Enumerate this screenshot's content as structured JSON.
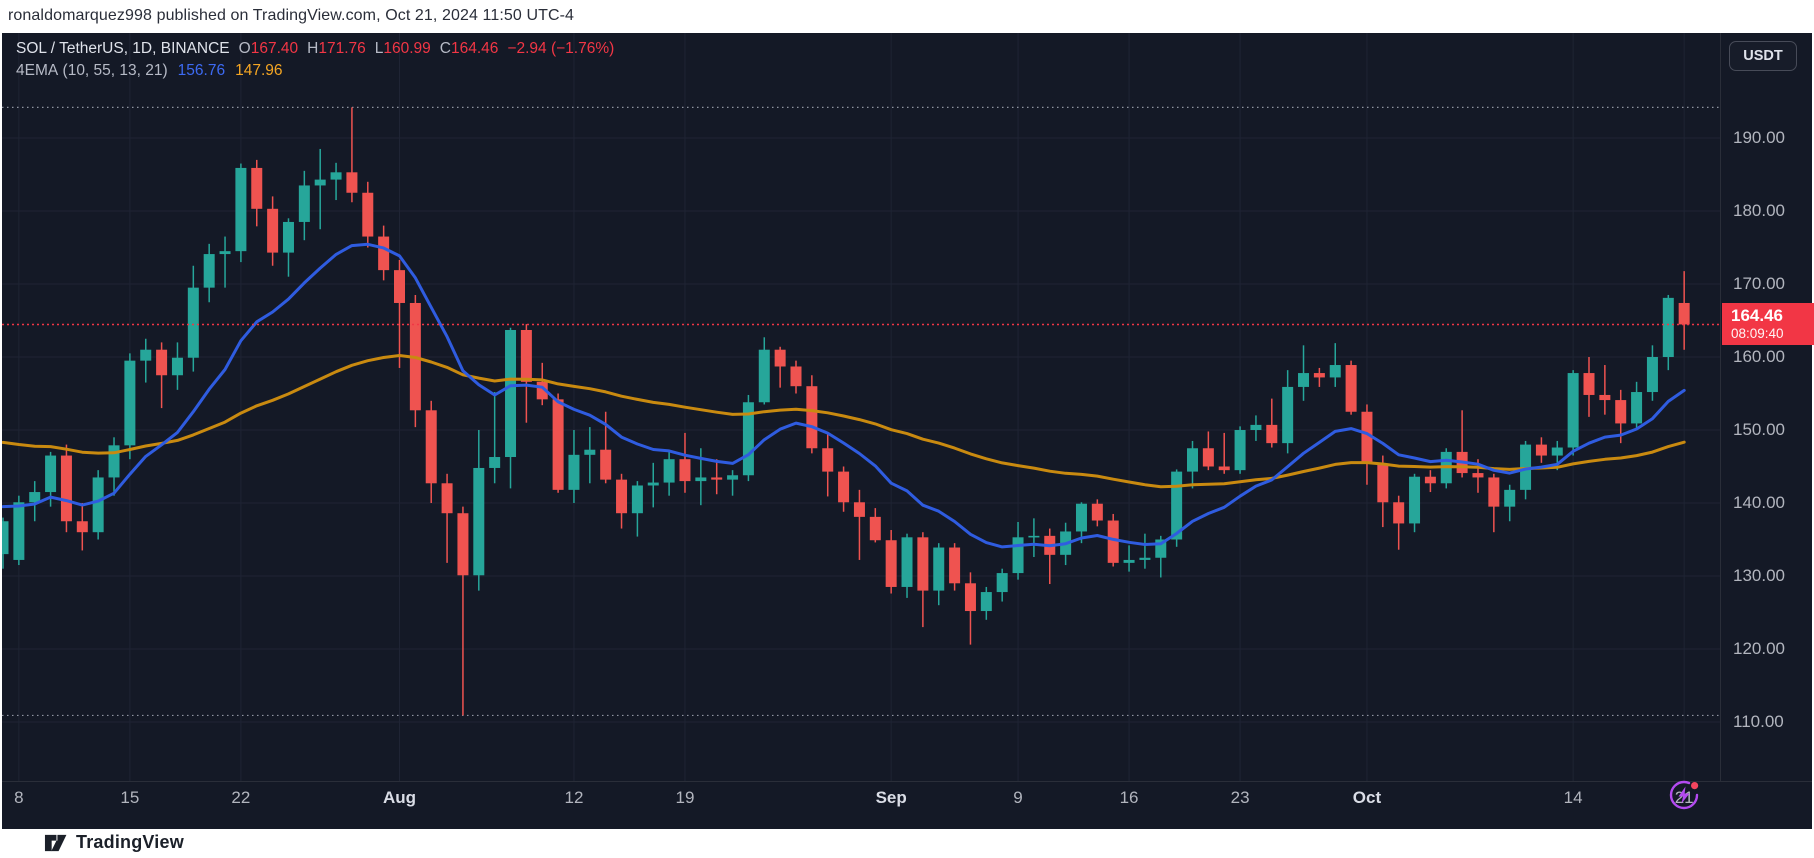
{
  "top_bar": {
    "text": "ronaldomarquez998 published on TradingView.com, Oct 21, 2024 11:50 UTC-4"
  },
  "header": {
    "symbol_title": "SOL / TetherUS, 1D, BINANCE",
    "ohlc": [
      {
        "label": "O",
        "value": "167.40"
      },
      {
        "label": "H",
        "value": "171.76"
      },
      {
        "label": "L",
        "value": "160.99"
      },
      {
        "label": "C",
        "value": "164.46"
      }
    ],
    "change": "−2.94 (−1.76%)",
    "indicator": {
      "name": "4EMA",
      "params": "(10, 55, 13, 21)",
      "values": [
        {
          "value": "156.76",
          "color": "#3d6af2"
        },
        {
          "value": "147.96",
          "color": "#f5a623"
        }
      ]
    }
  },
  "price_axis": {
    "currency_button": "USDT",
    "ticks": [
      "190.00",
      "180.00",
      "170.00",
      "160.00",
      "150.00",
      "140.00",
      "130.00",
      "120.00",
      "110.00"
    ],
    "last_price_label": "164.46",
    "countdown": "08:09:40"
  },
  "date_axis": {
    "ticks": [
      {
        "text": "8",
        "i": 1,
        "month": false
      },
      {
        "text": "15",
        "i": 8,
        "month": false
      },
      {
        "text": "22",
        "i": 15,
        "month": false
      },
      {
        "text": "Aug",
        "i": 25,
        "month": true
      },
      {
        "text": "12",
        "i": 36,
        "month": false
      },
      {
        "text": "19",
        "i": 43,
        "month": false
      },
      {
        "text": "Sep",
        "i": 56,
        "month": true
      },
      {
        "text": "9",
        "i": 64,
        "month": false
      },
      {
        "text": "16",
        "i": 71,
        "month": false
      },
      {
        "text": "23",
        "i": 78,
        "month": false
      },
      {
        "text": "Oct",
        "i": 86,
        "month": true
      },
      {
        "text": "14",
        "i": 99,
        "month": false
      },
      {
        "text": "21",
        "i": 106,
        "month": false
      }
    ]
  },
  "footer": {
    "logo_text": "TradingView"
  },
  "colors": {
    "up": "#26a69a",
    "down": "#ef5350",
    "accent_red": "#f23645",
    "grid": "#1f2434",
    "range_dotted": "#9095a1",
    "chart_bg": "#141926",
    "flash_purple": "#b44af0",
    "flash_dot": "#f3455e"
  },
  "chart_data": {
    "type": "candlestick",
    "title": "SOL / TetherUS, 1D, BINANCE",
    "interval": "1D",
    "ylabel": "price (USDT)",
    "ylim": [
      104,
      199
    ],
    "y_ticks": [
      190,
      180,
      170,
      160,
      150,
      140,
      130,
      120,
      110
    ],
    "grid": true,
    "last_bar": {
      "open": 167.4,
      "high": 171.76,
      "low": 160.99,
      "close": 164.46,
      "change": -2.94,
      "change_pct": -1.76
    },
    "range_lines": {
      "high": 194.2,
      "low": 110.9
    },
    "last_price_line": 164.46,
    "overlays": [
      {
        "name": "EMA slow",
        "period": 55,
        "color": "#c98a10",
        "current": 147.96
      },
      {
        "name": "EMA fast",
        "period": 13,
        "color": "#2f5ce0",
        "current": 156.76
      }
    ],
    "candles_format": [
      "open",
      "high",
      "low",
      "close"
    ],
    "candles": [
      [
        133.0,
        138.0,
        131.0,
        137.5
      ],
      [
        132.2,
        141.0,
        131.5,
        140.1
      ],
      [
        140.1,
        143.0,
        137.5,
        141.5
      ],
      [
        141.5,
        147.0,
        139.5,
        146.5
      ],
      [
        146.5,
        148.0,
        136.0,
        137.5
      ],
      [
        137.5,
        140.0,
        133.5,
        136.0
      ],
      [
        136.0,
        144.5,
        135.0,
        143.5
      ],
      [
        143.5,
        149.0,
        141.0,
        147.9
      ],
      [
        147.9,
        160.5,
        146.0,
        159.5
      ],
      [
        159.5,
        162.5,
        156.5,
        161.0
      ],
      [
        161.0,
        162.0,
        153.0,
        157.5
      ],
      [
        157.5,
        162.0,
        155.5,
        159.9
      ],
      [
        159.9,
        172.5,
        158.0,
        169.5
      ],
      [
        169.5,
        175.5,
        167.5,
        174.1
      ],
      [
        174.1,
        176.5,
        169.5,
        174.5
      ],
      [
        174.5,
        186.5,
        173.0,
        185.9
      ],
      [
        185.9,
        187.0,
        177.9,
        180.3
      ],
      [
        180.3,
        182.0,
        172.5,
        174.3
      ],
      [
        174.3,
        179.0,
        171.0,
        178.5
      ],
      [
        178.5,
        185.5,
        176.0,
        183.5
      ],
      [
        183.5,
        188.5,
        177.5,
        184.3
      ],
      [
        184.3,
        186.6,
        181.5,
        185.3
      ],
      [
        185.3,
        194.2,
        181.2,
        182.5
      ],
      [
        182.5,
        184.0,
        175.0,
        176.5
      ],
      [
        176.5,
        178.0,
        170.5,
        171.9
      ],
      [
        171.9,
        173.3,
        158.5,
        167.4
      ],
      [
        167.4,
        168.5,
        150.4,
        152.7
      ],
      [
        152.7,
        154.0,
        140.0,
        142.7
      ],
      [
        142.7,
        144.0,
        131.8,
        138.6
      ],
      [
        138.6,
        139.5,
        110.9,
        130.1
      ],
      [
        130.1,
        150.0,
        128.0,
        144.8
      ],
      [
        144.8,
        155.2,
        142.7,
        146.3
      ],
      [
        146.3,
        164.0,
        142.0,
        163.7
      ],
      [
        163.7,
        164.5,
        151.0,
        156.6
      ],
      [
        156.6,
        159.2,
        153.4,
        154.2
      ],
      [
        154.2,
        155.0,
        141.4,
        141.8
      ],
      [
        141.8,
        150.0,
        140.0,
        146.6
      ],
      [
        146.6,
        150.4,
        142.7,
        147.3
      ],
      [
        147.3,
        152.5,
        142.7,
        143.2
      ],
      [
        143.2,
        144.0,
        136.5,
        138.6
      ],
      [
        138.6,
        143.0,
        135.4,
        142.4
      ],
      [
        142.4,
        145.5,
        139.4,
        142.8
      ],
      [
        142.8,
        147.0,
        141.0,
        146.0
      ],
      [
        146.0,
        149.6,
        141.4,
        143.0
      ],
      [
        143.0,
        147.5,
        139.7,
        143.5
      ],
      [
        143.5,
        146.0,
        141.2,
        143.2
      ],
      [
        143.2,
        144.5,
        141.0,
        143.8
      ],
      [
        143.8,
        154.8,
        143.0,
        153.8
      ],
      [
        153.8,
        162.7,
        153.5,
        161.0
      ],
      [
        161.0,
        161.4,
        155.8,
        158.7
      ],
      [
        158.7,
        159.5,
        155.0,
        156.0
      ],
      [
        156.0,
        157.5,
        146.8,
        147.5
      ],
      [
        147.5,
        149.4,
        140.9,
        144.3
      ],
      [
        144.3,
        145.0,
        138.8,
        140.1
      ],
      [
        140.1,
        141.8,
        132.2,
        138.1
      ],
      [
        138.1,
        139.3,
        134.6,
        134.9
      ],
      [
        134.9,
        136.3,
        127.6,
        128.5
      ],
      [
        128.5,
        135.8,
        127.0,
        135.3
      ],
      [
        135.3,
        136.0,
        123.0,
        128.0
      ],
      [
        128.0,
        134.5,
        126.0,
        133.9
      ],
      [
        133.9,
        134.5,
        128.0,
        129.0
      ],
      [
        129.0,
        130.5,
        120.6,
        125.2
      ],
      [
        125.2,
        128.5,
        124.0,
        127.8
      ],
      [
        127.8,
        131.0,
        126.5,
        130.4
      ],
      [
        130.4,
        137.4,
        129.5,
        135.3
      ],
      [
        135.3,
        137.9,
        132.6,
        135.5
      ],
      [
        135.5,
        136.5,
        128.9,
        132.9
      ],
      [
        132.9,
        137.3,
        131.5,
        136.1
      ],
      [
        136.1,
        140.1,
        134.5,
        139.9
      ],
      [
        139.9,
        140.5,
        136.8,
        137.6
      ],
      [
        137.6,
        138.5,
        131.3,
        131.8
      ],
      [
        131.8,
        134.2,
        130.6,
        132.2
      ],
      [
        132.2,
        135.8,
        131.0,
        132.5
      ],
      [
        132.5,
        135.5,
        129.8,
        135.0
      ],
      [
        135.0,
        144.6,
        134.0,
        144.3
      ],
      [
        144.3,
        148.5,
        142.0,
        147.5
      ],
      [
        147.5,
        149.8,
        144.5,
        145.0
      ],
      [
        145.0,
        149.6,
        144.0,
        144.5
      ],
      [
        144.5,
        150.5,
        144.0,
        150.0
      ],
      [
        150.0,
        152.0,
        148.5,
        150.7
      ],
      [
        150.7,
        154.3,
        147.6,
        148.2
      ],
      [
        148.2,
        158.2,
        146.8,
        155.9
      ],
      [
        155.9,
        161.6,
        154.0,
        157.8
      ],
      [
        157.8,
        158.5,
        155.9,
        157.2
      ],
      [
        157.2,
        161.9,
        155.9,
        158.9
      ],
      [
        158.9,
        159.5,
        152.1,
        152.5
      ],
      [
        152.5,
        153.5,
        142.5,
        145.4
      ],
      [
        145.4,
        146.5,
        136.7,
        140.1
      ],
      [
        140.1,
        141.0,
        133.6,
        137.2
      ],
      [
        137.2,
        144.0,
        136.0,
        143.6
      ],
      [
        143.6,
        144.5,
        141.5,
        142.7
      ],
      [
        142.7,
        147.5,
        142.0,
        147.0
      ],
      [
        147.0,
        152.7,
        143.5,
        144.1
      ],
      [
        144.1,
        146.0,
        141.4,
        143.5
      ],
      [
        143.5,
        144.0,
        136.0,
        139.5
      ],
      [
        139.5,
        142.5,
        137.5,
        141.8
      ],
      [
        141.8,
        148.5,
        140.5,
        148.0
      ],
      [
        148.0,
        149.0,
        145.5,
        146.5
      ],
      [
        146.5,
        148.5,
        144.5,
        147.6
      ],
      [
        147.6,
        158.2,
        146.5,
        157.8
      ],
      [
        157.8,
        160.0,
        151.8,
        154.8
      ],
      [
        154.8,
        158.9,
        152.1,
        154.1
      ],
      [
        154.1,
        155.5,
        148.2,
        150.9
      ],
      [
        150.9,
        156.6,
        150.0,
        155.2
      ],
      [
        155.2,
        161.6,
        154.0,
        160.0
      ],
      [
        160.0,
        168.5,
        158.2,
        168.1
      ],
      [
        167.4,
        171.76,
        160.99,
        164.46
      ]
    ]
  }
}
